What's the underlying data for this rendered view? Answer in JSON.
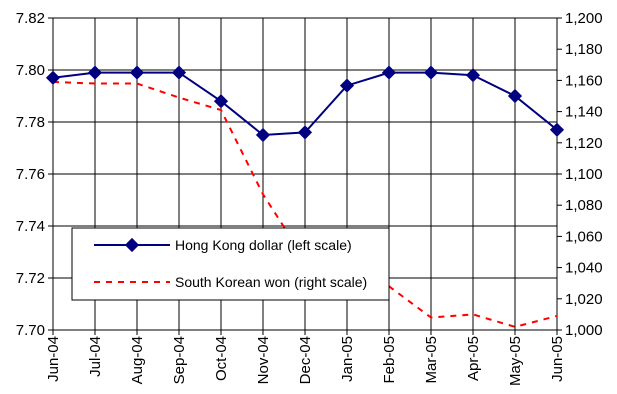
{
  "chart_data": {
    "type": "line",
    "title": "",
    "xlabel": "",
    "ylabel": "",
    "categories": [
      "Jun-04",
      "Jul-04",
      "Aug-04",
      "Sep-04",
      "Oct-04",
      "Nov-04",
      "Dec-04",
      "Jan-05",
      "Feb-05",
      "Mar-05",
      "Apr-05",
      "May-05",
      "Jun-05"
    ],
    "y_left": {
      "range": [
        7.7,
        7.82
      ],
      "ticks": [
        "7.70",
        "7.72",
        "7.74",
        "7.76",
        "7.78",
        "7.80",
        "7.82"
      ]
    },
    "y_right": {
      "range": [
        1000,
        1200
      ],
      "ticks": [
        "1,000",
        "1,020",
        "1,040",
        "1,060",
        "1,080",
        "1,100",
        "1,120",
        "1,140",
        "1,160",
        "1,180",
        "1,200"
      ]
    },
    "grid": true,
    "legend_position": "lower-left inside plot",
    "series": [
      {
        "name": "Hong Kong dollar (left scale)",
        "axis": "left",
        "color": "#000080",
        "marker": "diamond",
        "values": [
          7.797,
          7.799,
          7.799,
          7.799,
          7.788,
          7.775,
          7.776,
          7.794,
          7.799,
          7.799,
          7.798,
          7.79,
          7.777
        ]
      },
      {
        "name": "South Korean won (right scale)",
        "axis": "right",
        "color": "#ff0000",
        "style": "dashed",
        "values": [
          1159,
          1158,
          1158,
          1149,
          1141,
          1087,
          1045,
          1035,
          1028,
          1008,
          1010,
          1002,
          1009
        ]
      }
    ]
  }
}
